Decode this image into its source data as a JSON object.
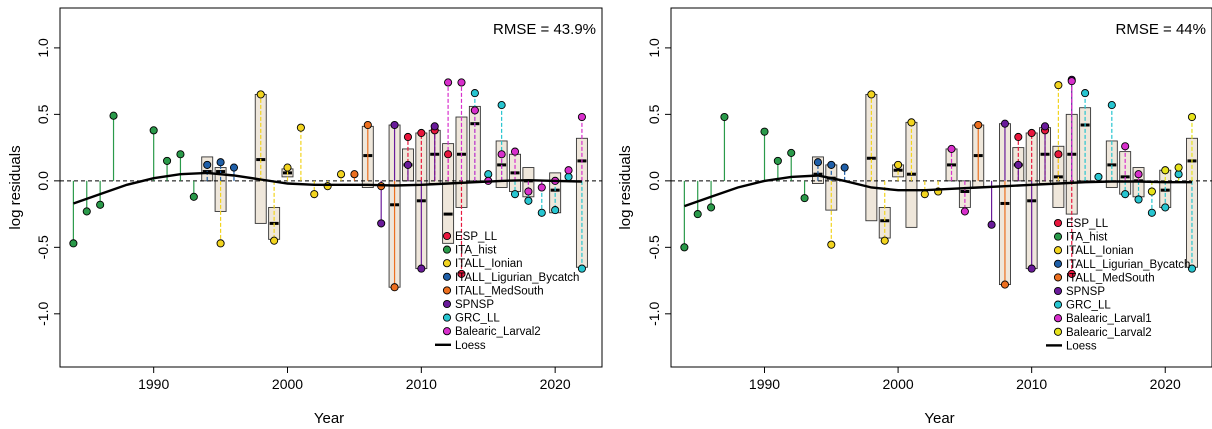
{
  "chart_data": [
    {
      "type": "scatter",
      "title": "",
      "annotation": "RMSE = 43.9%",
      "xlabel": "Year",
      "ylabel": "log residuals",
      "xlim": [
        1983,
        2023.5
      ],
      "ylim": [
        -1.4,
        1.3
      ],
      "xticks": [
        1990,
        2000,
        2010,
        2020
      ],
      "yticks": [
        -1.0,
        -0.5,
        0.0,
        0.5,
        1.0
      ],
      "ytick_labels": [
        "-1.0",
        "-0.5",
        "0.0",
        "0.5",
        "1.0"
      ],
      "legend_position": "bottom-right",
      "series": [
        {
          "name": "ESP_LL",
          "color": "#e8173d",
          "x": [
            2009,
            2010,
            2011,
            2012,
            2013
          ],
          "y": [
            0.33,
            0.36,
            0.38,
            0.2,
            -0.7
          ]
        },
        {
          "name": "ITA_hist",
          "color": "#2a9a4a",
          "x": [
            1984,
            1985,
            1986,
            1987,
            1990,
            1991,
            1992,
            1993
          ],
          "y": [
            -0.47,
            -0.23,
            -0.18,
            0.49,
            0.38,
            0.15,
            0.2,
            -0.12
          ]
        },
        {
          "name": "ITALL_Ionian",
          "color": "#f2d41f",
          "x": [
            1995,
            1998,
            1999,
            2000,
            2001,
            2002,
            2003,
            2004
          ],
          "y": [
            -0.47,
            0.65,
            -0.45,
            0.1,
            0.4,
            -0.1,
            -0.04,
            0.05
          ]
        },
        {
          "name": "ITALL_Ligurian_Bycatch",
          "color": "#1f5fa8",
          "x": [
            1994,
            1995,
            1996
          ],
          "y": [
            0.12,
            0.14,
            0.1
          ]
        },
        {
          "name": "ITALL_MedSouth",
          "color": "#ec6f1f",
          "x": [
            2005,
            2006,
            2007,
            2008
          ],
          "y": [
            0.05,
            0.42,
            -0.04,
            -0.8
          ]
        },
        {
          "name": "SPNSP",
          "color": "#6a1b9a",
          "x": [
            2007,
            2008,
            2009,
            2010,
            2011
          ],
          "y": [
            -0.32,
            0.42,
            0.12,
            -0.66,
            0.41
          ]
        },
        {
          "name": "GRC_LL",
          "color": "#27c5d0",
          "x": [
            2014,
            2015,
            2016,
            2017,
            2018,
            2019,
            2020,
            2021,
            2022
          ],
          "y": [
            0.66,
            0.05,
            0.57,
            -0.1,
            -0.15,
            -0.24,
            -0.22,
            0.03,
            -0.66
          ]
        },
        {
          "name": "Balearic_Larval2",
          "color": "#d82fcc",
          "x": [
            2012,
            2013,
            2014,
            2015,
            2016,
            2017,
            2018,
            2019,
            2020,
            2021,
            2022
          ],
          "y": [
            0.74,
            0.74,
            0.53,
            0.0,
            0.2,
            0.22,
            -0.08,
            -0.05,
            0.0,
            0.08,
            0.48
          ]
        }
      ],
      "loess": {
        "name": "Loess",
        "x": [
          1984,
          1986,
          1988,
          1990,
          1992,
          1994,
          1996,
          1998,
          2000,
          2002,
          2004,
          2006,
          2008,
          2010,
          2012,
          2014,
          2016,
          2018,
          2020,
          2022
        ],
        "y": [
          -0.17,
          -0.1,
          -0.03,
          0.02,
          0.05,
          0.06,
          0.04,
          0.01,
          -0.02,
          -0.03,
          -0.03,
          -0.03,
          -0.035,
          -0.03,
          -0.02,
          -0.01,
          0.0,
          0.005,
          0.0,
          -0.005
        ]
      },
      "boxes": [
        {
          "x": 1994,
          "q1": 0.0,
          "median": 0.07,
          "q3": 0.18
        },
        {
          "x": 1995,
          "q1": -0.23,
          "median": 0.07,
          "q3": 0.1
        },
        {
          "x": 1998,
          "q1": -0.32,
          "median": 0.16,
          "q3": 0.65
        },
        {
          "x": 1999,
          "q1": -0.44,
          "median": -0.32,
          "q3": -0.2
        },
        {
          "x": 2000,
          "q1": 0.03,
          "median": 0.06,
          "q3": 0.09
        },
        {
          "x": 2006,
          "q1": -0.05,
          "median": 0.19,
          "q3": 0.41
        },
        {
          "x": 2008,
          "q1": -0.8,
          "median": -0.18,
          "q3": 0.42
        },
        {
          "x": 2009,
          "q1": 0.0,
          "median": 0.12,
          "q3": 0.24
        },
        {
          "x": 2010,
          "q1": -0.66,
          "median": -0.15,
          "q3": 0.36
        },
        {
          "x": 2011,
          "q1": -0.02,
          "median": 0.2,
          "q3": 0.38
        },
        {
          "x": 2012,
          "q1": -0.47,
          "median": -0.25,
          "q3": 0.28
        },
        {
          "x": 2013,
          "q1": -0.2,
          "median": 0.2,
          "q3": 0.48
        },
        {
          "x": 2014,
          "q1": 0.0,
          "median": 0.43,
          "q3": 0.56
        },
        {
          "x": 2016,
          "q1": -0.05,
          "median": 0.12,
          "q3": 0.3
        },
        {
          "x": 2017,
          "q1": -0.08,
          "median": 0.06,
          "q3": 0.2
        },
        {
          "x": 2018,
          "q1": -0.12,
          "median": 0.0,
          "q3": 0.1
        },
        {
          "x": 2020,
          "q1": -0.24,
          "median": -0.07,
          "q3": 0.06
        },
        {
          "x": 2022,
          "q1": -0.65,
          "median": 0.15,
          "q3": 0.32
        }
      ]
    },
    {
      "type": "scatter",
      "title": "",
      "annotation": "RMSE = 44%",
      "xlabel": "Year",
      "ylabel": "log residuals",
      "xlim": [
        1983,
        2023.5
      ],
      "ylim": [
        -1.4,
        1.3
      ],
      "xticks": [
        1990,
        2000,
        2010,
        2020
      ],
      "yticks": [
        -1.0,
        -0.5,
        0.0,
        0.5,
        1.0
      ],
      "ytick_labels": [
        "-1.0",
        "-0.5",
        "0.0",
        "0.5",
        "1.0"
      ],
      "legend_position": "bottom-right",
      "series": [
        {
          "name": "ESP_LL",
          "color": "#e8173d",
          "x": [
            2009,
            2010,
            2011,
            2012,
            2013
          ],
          "y": [
            0.33,
            0.36,
            0.38,
            0.2,
            -0.7
          ]
        },
        {
          "name": "ITA_hist",
          "color": "#2a9a4a",
          "x": [
            1984,
            1985,
            1986,
            1987,
            1990,
            1991,
            1992,
            1993
          ],
          "y": [
            -0.5,
            -0.25,
            -0.2,
            0.48,
            0.37,
            0.15,
            0.21,
            -0.13
          ]
        },
        {
          "name": "ITALL_Ionian",
          "color": "#f2d41f",
          "x": [
            1995,
            1998,
            1999,
            2000,
            2001,
            2002,
            2003,
            2012
          ],
          "y": [
            -0.48,
            0.65,
            -0.45,
            0.12,
            0.44,
            -0.1,
            -0.08,
            0.72
          ]
        },
        {
          "name": "ITALL_Ligurian_Bycatch",
          "color": "#1f5fa8",
          "x": [
            1994,
            1995,
            1996
          ],
          "y": [
            0.14,
            0.12,
            0.1
          ]
        },
        {
          "name": "ITALL_MedSouth",
          "color": "#ec6f1f",
          "x": [
            2006,
            2008
          ],
          "y": [
            0.42,
            -0.78
          ]
        },
        {
          "name": "SPNSP",
          "color": "#6a1b9a",
          "x": [
            2007,
            2008,
            2009,
            2010,
            2011,
            2013
          ],
          "y": [
            -0.33,
            0.43,
            0.12,
            -0.66,
            0.41,
            0.76
          ]
        },
        {
          "name": "GRC_LL",
          "color": "#27c5d0",
          "x": [
            2014,
            2015,
            2016,
            2017,
            2018,
            2019,
            2020,
            2021,
            2022
          ],
          "y": [
            0.66,
            0.03,
            0.57,
            -0.1,
            -0.14,
            -0.24,
            -0.2,
            0.05,
            -0.66
          ]
        },
        {
          "name": "Balearic_Larval1",
          "color": "#d82fcc",
          "x": [
            2004,
            2005,
            2013,
            2017,
            2018
          ],
          "y": [
            0.24,
            -0.23,
            0.75,
            0.26,
            0.05
          ]
        },
        {
          "name": "Balearic_Larval2",
          "color": "#e6e21a",
          "x": [
            2019,
            2020,
            2021,
            2022
          ],
          "y": [
            -0.08,
            0.08,
            0.1,
            0.48
          ]
        }
      ],
      "loess": {
        "name": "Loess",
        "x": [
          1984,
          1986,
          1988,
          1990,
          1992,
          1994,
          1996,
          1998,
          2000,
          2002,
          2004,
          2006,
          2008,
          2010,
          2012,
          2014,
          2016,
          2018,
          2020,
          2022
        ],
        "y": [
          -0.19,
          -0.12,
          -0.05,
          0.0,
          0.03,
          0.04,
          0.0,
          -0.05,
          -0.07,
          -0.07,
          -0.06,
          -0.05,
          -0.04,
          -0.03,
          -0.02,
          -0.01,
          -0.005,
          -0.005,
          -0.01,
          -0.01
        ]
      },
      "boxes": [
        {
          "x": 1994,
          "q1": -0.02,
          "median": 0.05,
          "q3": 0.18
        },
        {
          "x": 1995,
          "q1": -0.22,
          "median": 0.02,
          "q3": 0.12
        },
        {
          "x": 1998,
          "q1": -0.3,
          "median": 0.17,
          "q3": 0.65
        },
        {
          "x": 1999,
          "q1": -0.43,
          "median": -0.3,
          "q3": -0.2
        },
        {
          "x": 2000,
          "q1": 0.03,
          "median": 0.08,
          "q3": 0.12
        },
        {
          "x": 2001,
          "q1": -0.35,
          "median": 0.05,
          "q3": 0.44
        },
        {
          "x": 2004,
          "q1": 0.0,
          "median": 0.12,
          "q3": 0.24
        },
        {
          "x": 2005,
          "q1": -0.2,
          "median": -0.08,
          "q3": 0.0
        },
        {
          "x": 2006,
          "q1": -0.05,
          "median": 0.19,
          "q3": 0.42
        },
        {
          "x": 2008,
          "q1": -0.78,
          "median": -0.17,
          "q3": 0.43
        },
        {
          "x": 2009,
          "q1": 0.0,
          "median": 0.12,
          "q3": 0.25
        },
        {
          "x": 2010,
          "q1": -0.66,
          "median": -0.15,
          "q3": 0.36
        },
        {
          "x": 2011,
          "q1": -0.02,
          "median": 0.2,
          "q3": 0.4
        },
        {
          "x": 2012,
          "q1": -0.2,
          "median": 0.03,
          "q3": 0.26
        },
        {
          "x": 2013,
          "q1": -0.25,
          "median": 0.2,
          "q3": 0.5
        },
        {
          "x": 2014,
          "q1": 0.0,
          "median": 0.42,
          "q3": 0.55
        },
        {
          "x": 2016,
          "q1": -0.05,
          "median": 0.12,
          "q3": 0.3
        },
        {
          "x": 2017,
          "q1": -0.1,
          "median": 0.03,
          "q3": 0.22
        },
        {
          "x": 2018,
          "q1": -0.12,
          "median": 0.0,
          "q3": 0.1
        },
        {
          "x": 2020,
          "q1": -0.2,
          "median": -0.07,
          "q3": 0.08
        },
        {
          "x": 2022,
          "q1": -0.65,
          "median": 0.15,
          "q3": 0.32
        }
      ]
    }
  ]
}
